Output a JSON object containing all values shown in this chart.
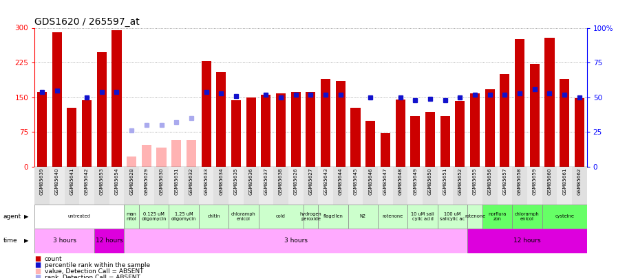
{
  "title": "GDS1620 / 265597_at",
  "samples": [
    "GSM85639",
    "GSM85640",
    "GSM85641",
    "GSM85642",
    "GSM85653",
    "GSM85654",
    "GSM85628",
    "GSM85629",
    "GSM85630",
    "GSM85631",
    "GSM85632",
    "GSM85633",
    "GSM85634",
    "GSM85635",
    "GSM85636",
    "GSM85637",
    "GSM85638",
    "GSM85626",
    "GSM85627",
    "GSM85643",
    "GSM85644",
    "GSM85645",
    "GSM85646",
    "GSM85647",
    "GSM85648",
    "GSM85649",
    "GSM85650",
    "GSM85651",
    "GSM85652",
    "GSM85655",
    "GSM85656",
    "GSM85657",
    "GSM85658",
    "GSM85659",
    "GSM85660",
    "GSM85661",
    "GSM85662"
  ],
  "bar_heights": [
    162,
    290,
    128,
    143,
    248,
    295,
    22,
    48,
    42,
    58,
    58,
    228,
    205,
    143,
    150,
    155,
    158,
    162,
    162,
    190,
    185,
    128,
    100,
    72,
    145,
    110,
    118,
    110,
    142,
    158,
    168,
    200,
    275,
    222,
    278,
    190,
    148
  ],
  "blue_squares_pct": [
    54,
    55,
    null,
    50,
    54,
    54,
    null,
    null,
    null,
    null,
    null,
    54,
    53,
    51,
    null,
    52,
    50,
    52,
    52,
    52,
    52,
    null,
    50,
    null,
    50,
    48,
    49,
    48,
    50,
    52,
    52,
    52,
    53,
    56,
    53,
    52,
    50
  ],
  "absent_bar_heights": [
    null,
    null,
    null,
    null,
    null,
    null,
    22,
    48,
    42,
    58,
    58,
    null,
    null,
    null,
    null,
    null,
    null,
    null,
    null,
    null,
    null,
    null,
    null,
    null,
    null,
    null,
    null,
    null,
    null,
    null,
    null,
    null,
    null,
    null,
    null,
    null,
    null
  ],
  "absent_rank_pct": [
    null,
    null,
    null,
    null,
    null,
    null,
    26,
    30,
    30,
    32,
    35,
    null,
    null,
    null,
    null,
    null,
    null,
    null,
    null,
    null,
    null,
    null,
    null,
    null,
    null,
    null,
    null,
    null,
    null,
    null,
    null,
    null,
    null,
    null,
    null,
    null,
    null
  ],
  "agents": [
    {
      "label": "untreated",
      "start": 0,
      "end": 5,
      "color": "#ffffff"
    },
    {
      "label": "man\nnitol",
      "start": 6,
      "end": 6,
      "color": "#ccffcc"
    },
    {
      "label": "0.125 uM\noligomycin",
      "start": 7,
      "end": 8,
      "color": "#ccffcc"
    },
    {
      "label": "1.25 uM\noligomycin",
      "start": 9,
      "end": 10,
      "color": "#ccffcc"
    },
    {
      "label": "chitin",
      "start": 11,
      "end": 12,
      "color": "#ccffcc"
    },
    {
      "label": "chloramph\nenicol",
      "start": 13,
      "end": 14,
      "color": "#ccffcc"
    },
    {
      "label": "cold",
      "start": 15,
      "end": 17,
      "color": "#ccffcc"
    },
    {
      "label": "hydrogen\nperoxide",
      "start": 18,
      "end": 18,
      "color": "#ccffcc"
    },
    {
      "label": "flagellen",
      "start": 19,
      "end": 20,
      "color": "#ccffcc"
    },
    {
      "label": "N2",
      "start": 21,
      "end": 22,
      "color": "#ccffcc"
    },
    {
      "label": "rotenone",
      "start": 23,
      "end": 24,
      "color": "#ccffcc"
    },
    {
      "label": "10 uM sali\ncylic acid",
      "start": 25,
      "end": 26,
      "color": "#ccffcc"
    },
    {
      "label": "100 uM\nsalicylic ac",
      "start": 27,
      "end": 28,
      "color": "#ccffcc"
    },
    {
      "label": "rotenone",
      "start": 29,
      "end": 29,
      "color": "#ccffcc"
    },
    {
      "label": "norflura\nzon",
      "start": 30,
      "end": 31,
      "color": "#66ff66"
    },
    {
      "label": "chloramph\nenicol",
      "start": 32,
      "end": 33,
      "color": "#66ff66"
    },
    {
      "label": "cysteine",
      "start": 34,
      "end": 36,
      "color": "#66ff66"
    }
  ],
  "time_blocks": [
    {
      "label": "3 hours",
      "start": 0,
      "end": 3,
      "color": "#ffaaff"
    },
    {
      "label": "12 hours",
      "start": 4,
      "end": 5,
      "color": "#dd00dd"
    },
    {
      "label": "3 hours",
      "start": 6,
      "end": 28,
      "color": "#ffaaff"
    },
    {
      "label": "12 hours",
      "start": 29,
      "end": 36,
      "color": "#dd00dd"
    }
  ],
  "ylim_left": [
    0,
    300
  ],
  "ylim_right": [
    0,
    100
  ],
  "yticks_left": [
    0,
    75,
    150,
    225,
    300
  ],
  "yticks_right": [
    0,
    25,
    50,
    75,
    100
  ],
  "bar_color": "#cc0000",
  "absent_bar_color": "#ffb3b3",
  "blue_sq_color": "#1111cc",
  "absent_rank_color": "#aaaaee",
  "grid_color": "#888888",
  "bg_color": "#ffffff"
}
